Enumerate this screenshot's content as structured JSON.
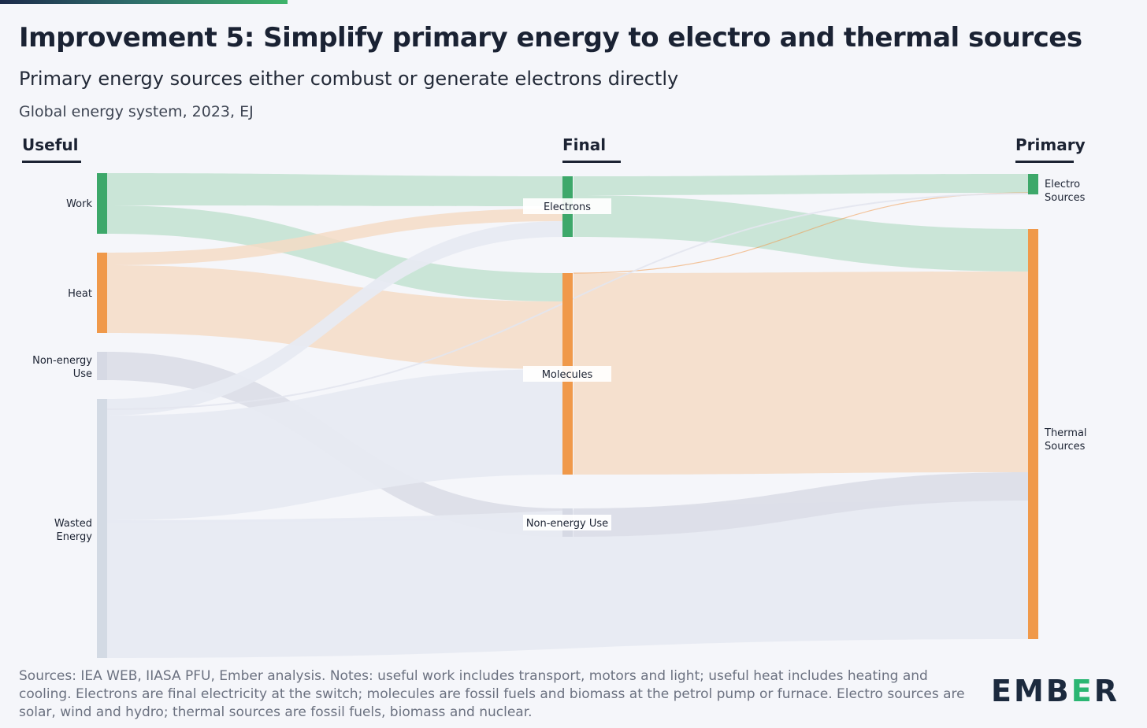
{
  "title": "Improvement 5: Simplify primary energy to electro and thermal sources",
  "subtitle": "Primary energy sources either combust or generate electrons directly",
  "meta": "Global energy system, 2023, EJ",
  "columns": {
    "useful": "Useful",
    "final": "Final",
    "primary": "Primary"
  },
  "nodes": {
    "work": "Work",
    "heat": "Heat",
    "nonenergy_useful_1": "Non-energy",
    "nonenergy_useful_2": "Use",
    "wasted_1": "Wasted",
    "wasted_2": "Energy",
    "electrons": "Electrons",
    "molecules": "Molecules",
    "nonenergy_final": "Non-energy Use",
    "electro_1": "Electro",
    "electro_2": "Sources",
    "thermal_1": "Thermal",
    "thermal_2": "Sources"
  },
  "colors": {
    "electro": "#3da86a",
    "electro_flow": "#c5e3d3",
    "thermal": "#f0994a",
    "thermal_flow": "#f4dcc6",
    "nonenergy": "#d6d9e4",
    "nonenergy_flow": "#dcdee8",
    "wasted": "#d3dae4",
    "wasted_flow": "#e7eaf2"
  },
  "footer": "Sources: IEA WEB, IIASA PFU, Ember analysis. Notes: useful work includes transport, motors and light; useful heat includes heating and cooling. Electrons are final electricity at the switch; molecules are fossil fuels and biomass at the petrol pump or furnace. Electro sources are solar, wind and hydro; thermal sources are fossil fuels, biomass and nuclear.",
  "logo": {
    "before": "EMB",
    "accent": "E",
    "after": "R"
  }
}
